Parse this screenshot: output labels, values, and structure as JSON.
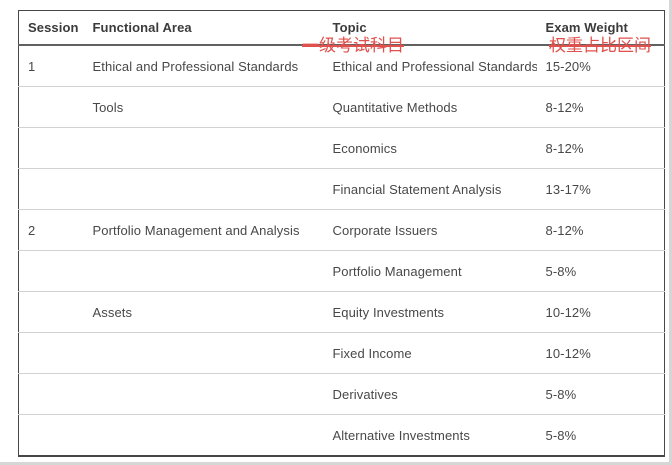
{
  "table": {
    "headers": [
      "Session",
      "Functional Area",
      "Topic",
      "Exam Weight"
    ],
    "rows": [
      {
        "session": "1",
        "functional_area": "Ethical and Professional Standards",
        "topic": "Ethical and Professional Standards",
        "exam_weight": "15-20%"
      },
      {
        "session": "",
        "functional_area": "Tools",
        "topic": "Quantitative Methods",
        "exam_weight": "8-12%"
      },
      {
        "session": "",
        "functional_area": "",
        "topic": "Economics",
        "exam_weight": "8-12%"
      },
      {
        "session": "",
        "functional_area": "",
        "topic": "Financial Statement Analysis",
        "exam_weight": "13-17%"
      },
      {
        "session": "2",
        "functional_area": "Portfolio Management and Analysis",
        "topic": "Corporate Issuers",
        "exam_weight": "8-12%"
      },
      {
        "session": "",
        "functional_area": "",
        "topic": "Portfolio Management",
        "exam_weight": "5-8%"
      },
      {
        "session": "",
        "functional_area": "Assets",
        "topic": "Equity Investments",
        "exam_weight": "10-12%"
      },
      {
        "session": "",
        "functional_area": "",
        "topic": "Fixed Income",
        "exam_weight": "10-12%"
      },
      {
        "session": "",
        "functional_area": "",
        "topic": "Derivatives",
        "exam_weight": "5-8%"
      },
      {
        "session": "",
        "functional_area": "",
        "topic": "Alternative Investments",
        "exam_weight": "5-8%"
      }
    ]
  },
  "annotations": {
    "topic_label": "一级考试科目",
    "weight_label": "权重占比区间",
    "color": "#e0514d"
  },
  "colors": {
    "outer_border": "#474747",
    "header_rule": "#616161",
    "row_rule": "#d2d2d2",
    "header_text": "#3b3b3b",
    "body_text": "#484848",
    "background": "#ffffff"
  }
}
